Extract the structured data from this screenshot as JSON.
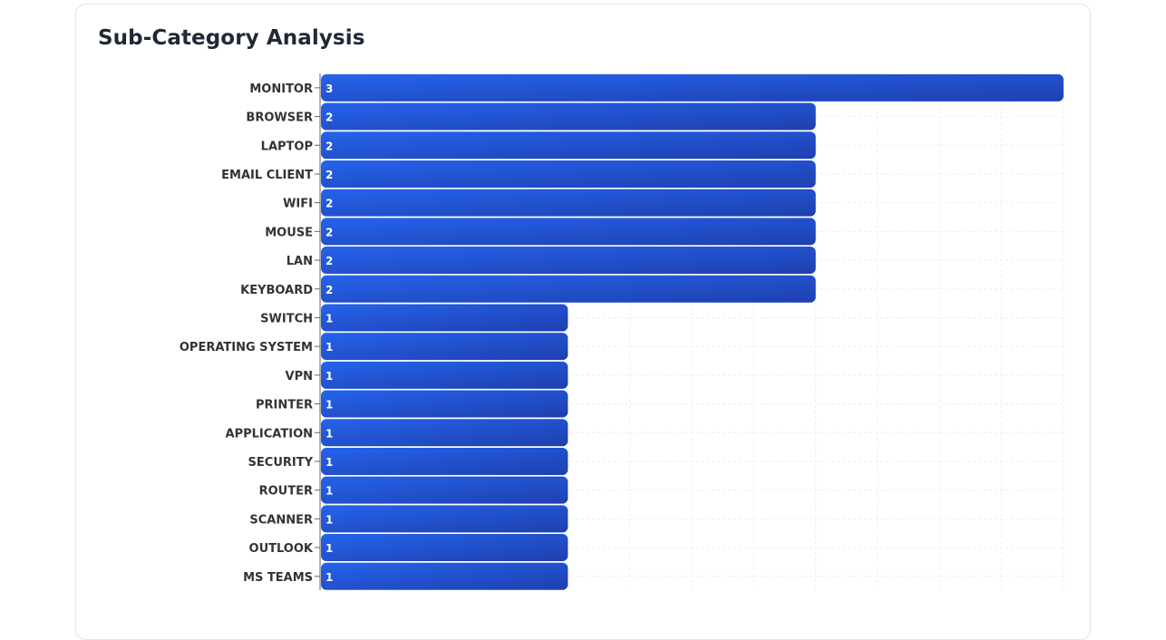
{
  "card": {
    "title": "Sub-Category Analysis"
  },
  "chart_data": {
    "type": "bar",
    "orientation": "horizontal",
    "title": "Sub-Category Analysis",
    "xlabel": "",
    "ylabel": "",
    "xlim": [
      0,
      3
    ],
    "grid": true,
    "legend": "none",
    "categories": [
      "MONITOR",
      "BROWSER",
      "LAPTOP",
      "EMAIL CLIENT",
      "WIFI",
      "MOUSE",
      "LAN",
      "KEYBOARD",
      "SWITCH",
      "OPERATING SYSTEM",
      "VPN",
      "PRINTER",
      "APPLICATION",
      "SECURITY",
      "ROUTER",
      "SCANNER",
      "OUTLOOK",
      "MS TEAMS"
    ],
    "values": [
      3,
      2,
      2,
      2,
      2,
      2,
      2,
      2,
      1,
      1,
      1,
      1,
      1,
      1,
      1,
      1,
      1,
      1
    ],
    "data_labels": true
  },
  "colors": {
    "bar_start": "#2563eb",
    "bar_end": "#1e40af",
    "label_text": "#333333",
    "axis": "#666666",
    "grid": "#eeeeee"
  }
}
